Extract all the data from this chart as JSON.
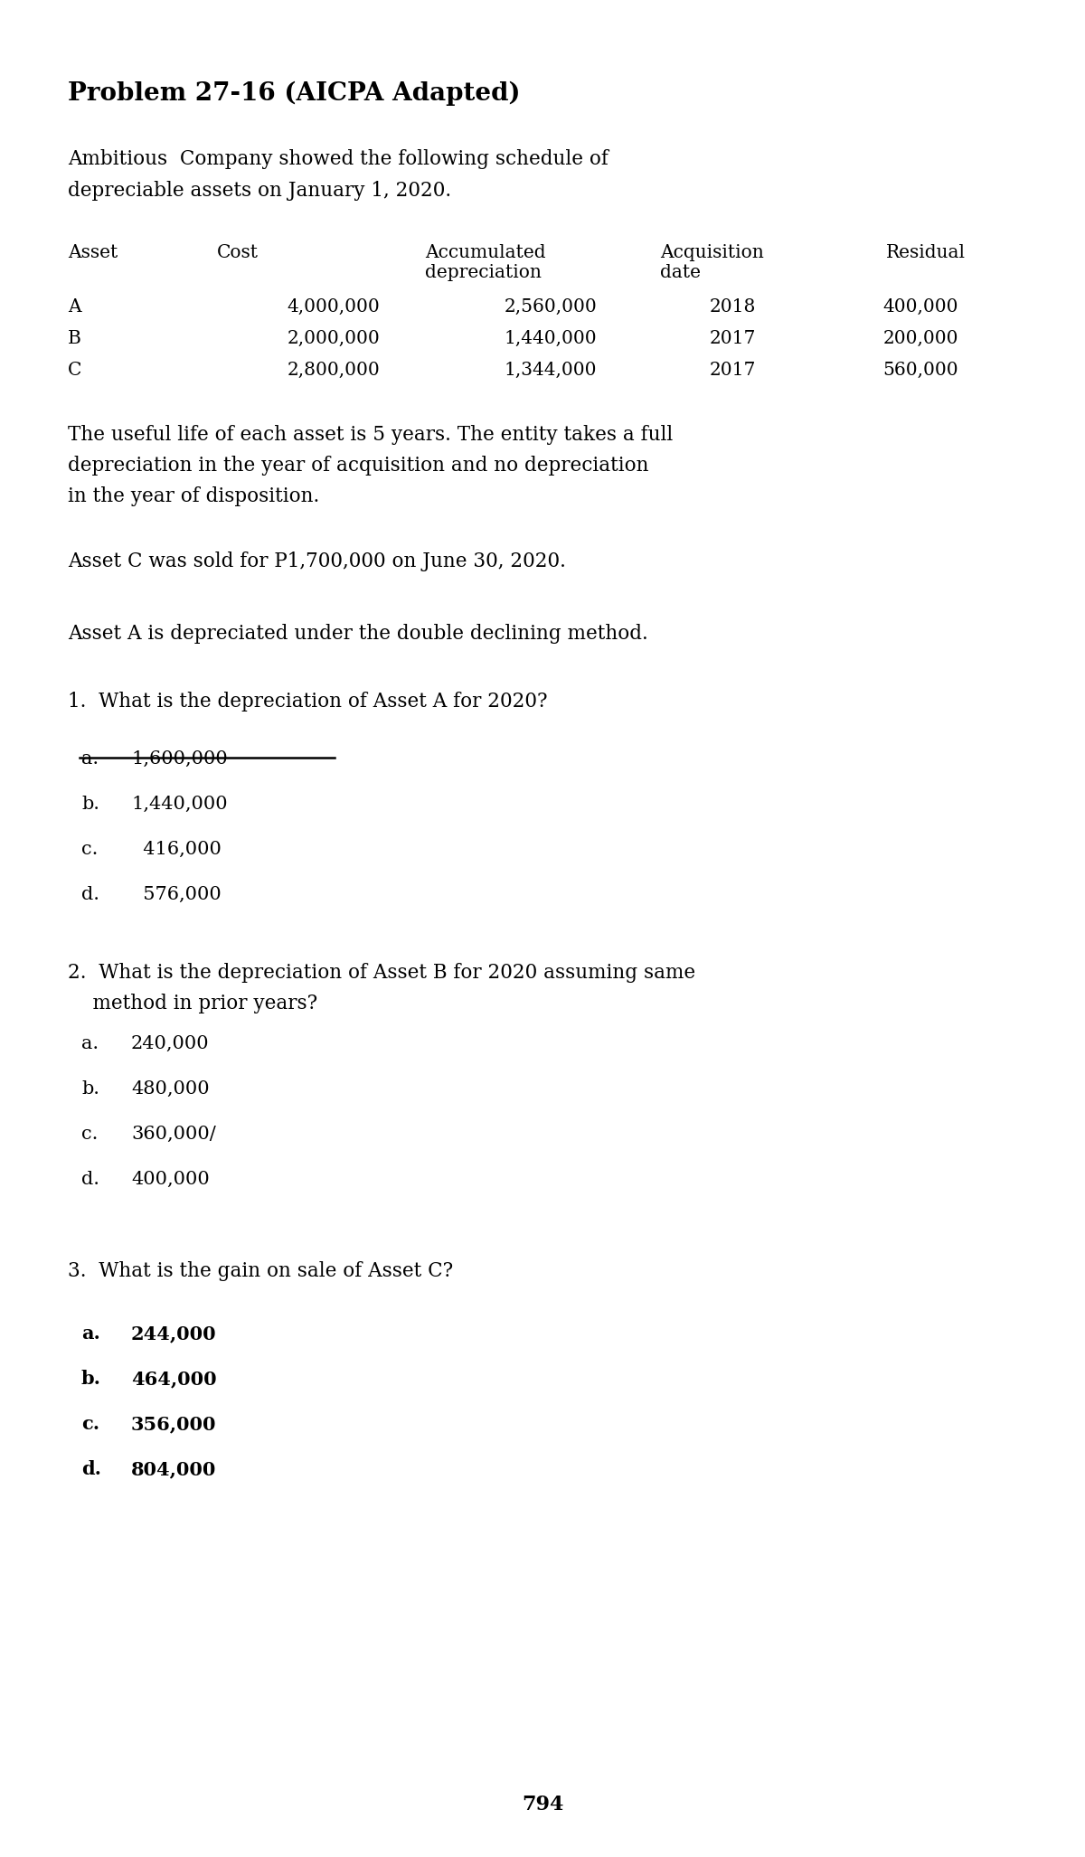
{
  "title": "Problem 27-16 (AICPA Adapted)",
  "intro_line1": "Ambitious  Company showed the following schedule of",
  "intro_line2": "depreciable assets on January 1, 2020.",
  "table_col_headers": [
    "Asset",
    "Cost",
    "Accumulated\ndepreciation",
    "Acquisition\ndate",
    "Residual"
  ],
  "table_rows": [
    [
      "A",
      "4,000,000",
      "2,560,000",
      "2018",
      "400,000"
    ],
    [
      "B",
      "2,000,000",
      "1,440,000",
      "2017",
      "200,000"
    ],
    [
      "C",
      "2,800,000",
      "1,344,000",
      "2017",
      "560,000"
    ]
  ],
  "paragraph1_line1": "The useful life of each asset is 5 years. The entity takes a full",
  "paragraph1_line2": "depreciation in the year of acquisition and no depreciation",
  "paragraph1_line3": "in the year of disposition.",
  "paragraph2": "Asset C was sold for P1,700,000 on June 30, 2020.",
  "paragraph3": "Asset A is depreciated under the double declining method.",
  "q1_text": "1.  What is the depreciation of Asset A for 2020?",
  "q1_options": [
    [
      "a.",
      "1,600,000",
      true
    ],
    [
      "b.",
      "1,440,000",
      false
    ],
    [
      "c.",
      "  416,000",
      false
    ],
    [
      "d.",
      "  576,000",
      false
    ]
  ],
  "q2_text_line1": "2.  What is the depreciation of Asset B for 2020 assuming same",
  "q2_text_line2": "    method in prior years?",
  "q2_options": [
    [
      "a.",
      "240,000",
      false
    ],
    [
      "b.",
      "480,000",
      false
    ],
    [
      "c.",
      "360,000/",
      false
    ],
    [
      "d.",
      "400,000",
      false
    ]
  ],
  "q3_text": "3.  What is the gain on sale of Asset C?",
  "q3_options": [
    [
      "a.",
      "244,000",
      false
    ],
    [
      "b.",
      "464,000",
      false
    ],
    [
      "c.",
      "356,000",
      false
    ],
    [
      "d.",
      "804,000",
      false
    ]
  ],
  "page_number": "794",
  "bg_color": "#ffffff"
}
